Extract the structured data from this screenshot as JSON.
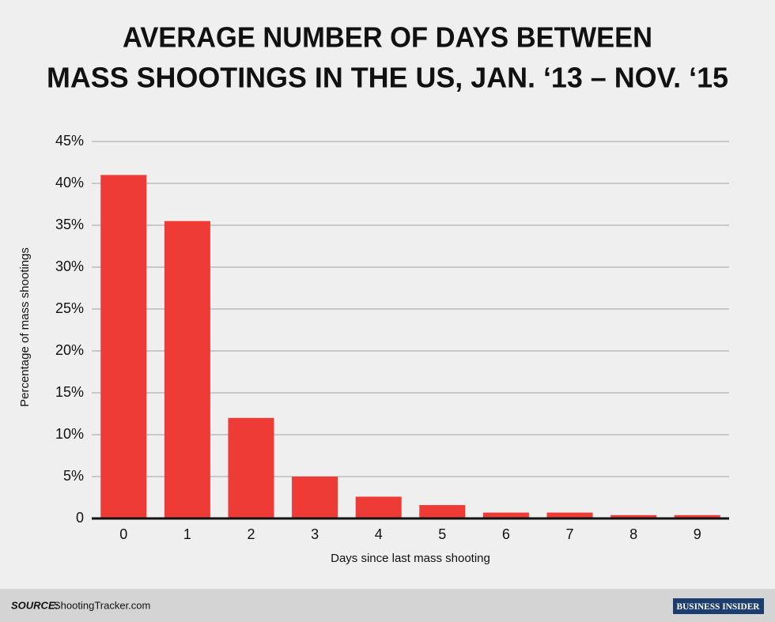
{
  "chart_data": {
    "type": "bar",
    "title": [
      "AVERAGE NUMBER OF DAYS BETWEEN",
      "MASS SHOOTINGS IN THE US, JAN. ‘13 – NOV. ‘15"
    ],
    "x_label": "Days since last mass shooting",
    "y_label": "Percentage of mass shootings",
    "categories": [
      "0",
      "1",
      "2",
      "3",
      "4",
      "5",
      "6",
      "7",
      "8",
      "9"
    ],
    "values": [
      41,
      35.5,
      12,
      5,
      2.6,
      1.6,
      0.7,
      0.7,
      0.4,
      0.4
    ],
    "color": "#ee3b36",
    "ylim": [
      0,
      45
    ],
    "yticks": [
      0,
      {
        "value": 5,
        "label": "5%"
      },
      {
        "value": 10,
        "label": "10%"
      },
      {
        "value": 15,
        "label": "15%"
      },
      {
        "value": 20,
        "label": "20%"
      },
      {
        "value": 25,
        "label": "25%"
      },
      {
        "value": 30,
        "label": "30%"
      },
      {
        "value": 35,
        "label": "35%"
      },
      {
        "value": 40,
        "label": "40%"
      },
      {
        "value": 45,
        "label": "45%"
      }
    ],
    "grid": true
  },
  "footer": {
    "source_label": "SOURCE:",
    "source": "ShootingTracker.com",
    "logo": "BUSINESS INSIDER"
  }
}
